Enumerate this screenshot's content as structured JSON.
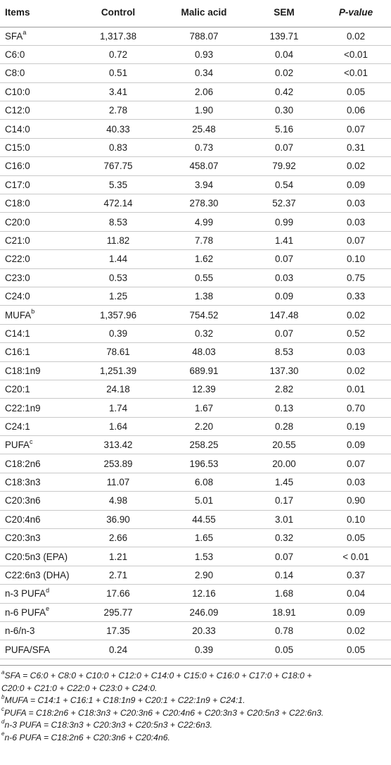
{
  "table": {
    "headers": {
      "items": "Items",
      "control": "Control",
      "malic": "Malic acid",
      "sem": "SEM",
      "pvalue": "P-value"
    },
    "rows": [
      {
        "item": "SFA",
        "sup": "a",
        "control": "1,317.38",
        "malic": "788.07",
        "sem": "139.71",
        "p": "0.02"
      },
      {
        "item": "C6:0",
        "sup": "",
        "control": "0.72",
        "malic": "0.93",
        "sem": "0.04",
        "p": "<0.01"
      },
      {
        "item": "C8:0",
        "sup": "",
        "control": "0.51",
        "malic": "0.34",
        "sem": "0.02",
        "p": "<0.01"
      },
      {
        "item": "C10:0",
        "sup": "",
        "control": "3.41",
        "malic": "2.06",
        "sem": "0.42",
        "p": "0.05"
      },
      {
        "item": "C12:0",
        "sup": "",
        "control": "2.78",
        "malic": "1.90",
        "sem": "0.30",
        "p": "0.06"
      },
      {
        "item": "C14:0",
        "sup": "",
        "control": "40.33",
        "malic": "25.48",
        "sem": "5.16",
        "p": "0.07"
      },
      {
        "item": "C15:0",
        "sup": "",
        "control": "0.83",
        "malic": "0.73",
        "sem": "0.07",
        "p": "0.31"
      },
      {
        "item": "C16:0",
        "sup": "",
        "control": "767.75",
        "malic": "458.07",
        "sem": "79.92",
        "p": "0.02"
      },
      {
        "item": "C17:0",
        "sup": "",
        "control": "5.35",
        "malic": "3.94",
        "sem": "0.54",
        "p": "0.09"
      },
      {
        "item": "C18:0",
        "sup": "",
        "control": "472.14",
        "malic": "278.30",
        "sem": "52.37",
        "p": "0.03"
      },
      {
        "item": "C20:0",
        "sup": "",
        "control": "8.53",
        "malic": "4.99",
        "sem": "0.99",
        "p": "0.03"
      },
      {
        "item": "C21:0",
        "sup": "",
        "control": "11.82",
        "malic": "7.78",
        "sem": "1.41",
        "p": "0.07"
      },
      {
        "item": "C22:0",
        "sup": "",
        "control": "1.44",
        "malic": "1.62",
        "sem": "0.07",
        "p": "0.10"
      },
      {
        "item": "C23:0",
        "sup": "",
        "control": "0.53",
        "malic": "0.55",
        "sem": "0.03",
        "p": "0.75"
      },
      {
        "item": "C24:0",
        "sup": "",
        "control": "1.25",
        "malic": "1.38",
        "sem": "0.09",
        "p": "0.33"
      },
      {
        "item": "MUFA",
        "sup": "b",
        "control": "1,357.96",
        "malic": "754.52",
        "sem": "147.48",
        "p": "0.02"
      },
      {
        "item": "C14:1",
        "sup": "",
        "control": "0.39",
        "malic": "0.32",
        "sem": "0.07",
        "p": "0.52"
      },
      {
        "item": "C16:1",
        "sup": "",
        "control": "78.61",
        "malic": "48.03",
        "sem": "8.53",
        "p": "0.03"
      },
      {
        "item": "C18:1n9",
        "sup": "",
        "control": "1,251.39",
        "malic": "689.91",
        "sem": "137.30",
        "p": "0.02"
      },
      {
        "item": "C20:1",
        "sup": "",
        "control": "24.18",
        "malic": "12.39",
        "sem": "2.82",
        "p": "0.01"
      },
      {
        "item": "C22:1n9",
        "sup": "",
        "control": "1.74",
        "malic": "1.67",
        "sem": "0.13",
        "p": "0.70"
      },
      {
        "item": "C24:1",
        "sup": "",
        "control": "1.64",
        "malic": "2.20",
        "sem": "0.28",
        "p": "0.19"
      },
      {
        "item": "PUFA",
        "sup": "c",
        "control": "313.42",
        "malic": "258.25",
        "sem": "20.55",
        "p": "0.09"
      },
      {
        "item": "C18:2n6",
        "sup": "",
        "control": "253.89",
        "malic": "196.53",
        "sem": "20.00",
        "p": "0.07"
      },
      {
        "item": "C18:3n3",
        "sup": "",
        "control": "11.07",
        "malic": "6.08",
        "sem": "1.45",
        "p": "0.03"
      },
      {
        "item": "C20:3n6",
        "sup": "",
        "control": "4.98",
        "malic": "5.01",
        "sem": "0.17",
        "p": "0.90"
      },
      {
        "item": "C20:4n6",
        "sup": "",
        "control": "36.90",
        "malic": "44.55",
        "sem": "3.01",
        "p": "0.10"
      },
      {
        "item": "C20:3n3",
        "sup": "",
        "control": "2.66",
        "malic": "1.65",
        "sem": "0.32",
        "p": "0.05"
      },
      {
        "item": "C20:5n3 (EPA)",
        "sup": "",
        "control": "1.21",
        "malic": "1.53",
        "sem": "0.07",
        "p": "< 0.01"
      },
      {
        "item": "C22:6n3 (DHA)",
        "sup": "",
        "control": "2.71",
        "malic": "2.90",
        "sem": "0.14",
        "p": "0.37"
      },
      {
        "item": "n-3 PUFA",
        "sup": "d",
        "control": "17.66",
        "malic": "12.16",
        "sem": "1.68",
        "p": "0.04"
      },
      {
        "item": "n-6 PUFA",
        "sup": "e",
        "control": "295.77",
        "malic": "246.09",
        "sem": "18.91",
        "p": "0.09"
      },
      {
        "item": "n-6/n-3",
        "sup": "",
        "control": "17.35",
        "malic": "20.33",
        "sem": "0.78",
        "p": "0.02"
      },
      {
        "item": "PUFA/SFA",
        "sup": "",
        "control": "0.24",
        "malic": "0.39",
        "sem": "0.05",
        "p": "0.05"
      }
    ]
  },
  "footnotes": [
    {
      "mark": "a",
      "lines": [
        "SFA = C6:0 + C8:0 + C10:0 + C12:0 + C14:0 + C15:0 + C16:0 + C17:0 + C18:0 +",
        "C20:0 + C21:0 + C22:0 + C23:0 + C24:0."
      ]
    },
    {
      "mark": "b",
      "lines": [
        "MUFA = C14:1 + C16:1 + C18:1n9 + C20:1 + C22:1n9 + C24:1."
      ]
    },
    {
      "mark": "c",
      "lines": [
        "PUFA = C18:2n6 + C18:3n3 + C20:3n6 + C20:4n6 + C20:3n3 + C20:5n3 + C22:6n3."
      ]
    },
    {
      "mark": "d",
      "lines": [
        "n-3 PUFA = C18:3n3 + C20:3n3 + C20:5n3 + C22:6n3."
      ]
    },
    {
      "mark": "e",
      "lines": [
        "n-6 PUFA = C18:2n6 + C20:3n6 + C20:4n6."
      ]
    }
  ]
}
